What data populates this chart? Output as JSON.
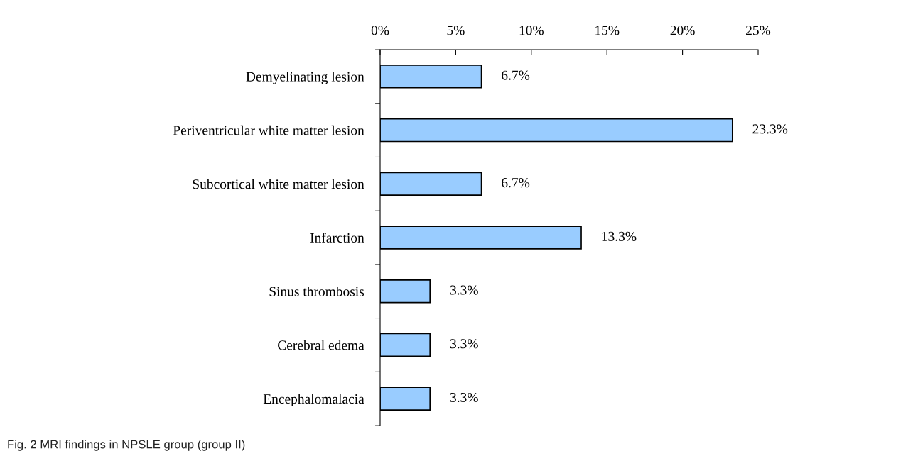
{
  "chart_data": {
    "type": "bar",
    "orientation": "horizontal",
    "categories": [
      "Demyelinating lesion",
      "Periventricular white matter lesion",
      "Subcortical white matter lesion",
      "Infarction",
      "Sinus thrombosis",
      "Cerebral edema",
      "Encephalomalacia"
    ],
    "values": [
      6.7,
      23.3,
      6.7,
      13.3,
      3.3,
      3.3,
      3.3
    ],
    "value_labels": [
      "6.7%",
      "23.3%",
      "6.7%",
      "13.3%",
      "3.3%",
      "3.3%",
      "3.3%"
    ],
    "color": "#99ccff",
    "xlim": [
      0,
      25
    ],
    "xticks": [
      {
        "value": 0,
        "label": "0%"
      },
      {
        "value": 5,
        "label": "5%"
      },
      {
        "value": 10,
        "label": "10%"
      },
      {
        "value": 15,
        "label": "15%"
      },
      {
        "value": 20,
        "label": "20%"
      },
      {
        "value": 25,
        "label": "25%"
      }
    ],
    "grid": false,
    "legend": false,
    "annotations": [
      "Fig. 2 MRI findings in NPSLE group (group II)"
    ]
  }
}
